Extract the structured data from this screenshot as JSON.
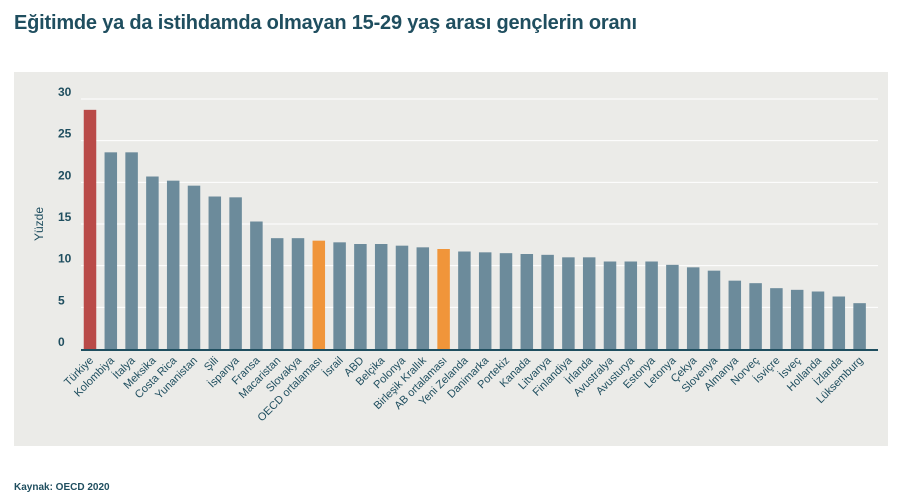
{
  "title": "Eğitimde ya da istihdamda olmayan 15-29 yaş arası gençlerin oranı",
  "source": "Kaynak: OECD 2020",
  "colors": {
    "default": "#6c8b9b",
    "highlight": "#b94a48",
    "average": "#f0953a",
    "axis": "#1f4e5f",
    "grid": "#ffffff",
    "background": "#ebebe8",
    "text": "#1f4e5f"
  },
  "chart_data": {
    "type": "bar",
    "title": "Eğitimde ya da istihdamda olmayan 15-29 yaş arası gençlerin oranı",
    "xlabel": "",
    "ylabel": "Yüzde",
    "ylim": [
      0,
      30
    ],
    "yticks": [
      0,
      5,
      10,
      15,
      20,
      25,
      30
    ],
    "grid": true,
    "categories": [
      "Türkiye",
      "Kolombiya",
      "İtalya",
      "Meksika",
      "Costa Rica",
      "Yunanistan",
      "Şili",
      "İspanya",
      "Fransa",
      "Macaristan",
      "Slovakya",
      "OECD ortalaması",
      "İsrail",
      "ABD",
      "Belçika",
      "Polonya",
      "Birleşik Krallık",
      "AB ortalaması",
      "Yeni Zelanda",
      "Danimarka",
      "Portekiz",
      "Kanada",
      "Litvanya",
      "Finlandiya",
      "İrlanda",
      "Avustralya",
      "Avusturya",
      "Estonya",
      "Letonya",
      "Çekya",
      "Slovenya",
      "Almanya",
      "Norveç",
      "İsviçre",
      "İsveç",
      "Hollanda",
      "İzlanda",
      "Lüksemburg"
    ],
    "values": [
      28.7,
      23.6,
      23.6,
      20.7,
      20.2,
      19.6,
      18.3,
      18.2,
      15.3,
      13.3,
      13.3,
      13.0,
      12.8,
      12.6,
      12.6,
      12.4,
      12.2,
      12.0,
      11.7,
      11.6,
      11.5,
      11.4,
      11.3,
      11.0,
      11.0,
      10.5,
      10.5,
      10.5,
      10.1,
      9.8,
      9.4,
      8.2,
      7.9,
      7.3,
      7.1,
      6.9,
      6.3,
      5.5
    ],
    "highlight": [
      "Türkiye"
    ],
    "averages": [
      "OECD ortalaması",
      "AB ortalaması"
    ]
  }
}
